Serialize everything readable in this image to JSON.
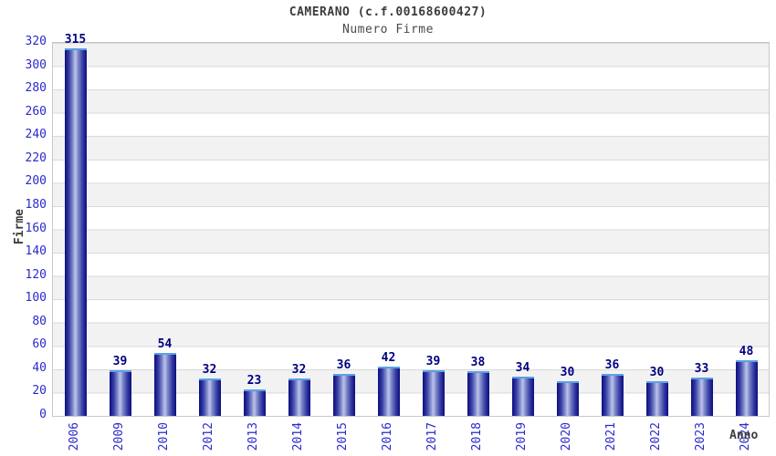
{
  "header": {
    "title": "CAMERANO (c.f.00168600427)",
    "subtitle": "Numero Firme"
  },
  "chart_data": {
    "type": "bar",
    "title": "CAMERANO (c.f.00168600427)",
    "subtitle": "Numero Firme",
    "xlabel": "Anno",
    "ylabel": "Firme",
    "categories": [
      "2006",
      "2009",
      "2010",
      "2012",
      "2013",
      "2014",
      "2015",
      "2016",
      "2017",
      "2018",
      "2019",
      "2020",
      "2021",
      "2022",
      "2023",
      "2024"
    ],
    "values": [
      315,
      39,
      54,
      32,
      23,
      32,
      36,
      42,
      39,
      38,
      34,
      30,
      36,
      30,
      33,
      48
    ],
    "ylim": [
      0,
      320
    ],
    "ytick_step": 20,
    "yticks": [
      0,
      20,
      40,
      60,
      80,
      100,
      120,
      140,
      160,
      180,
      200,
      220,
      240,
      260,
      280,
      300,
      320
    ],
    "legend": "none",
    "grid": "horizontal-bands-alternating",
    "colors": {
      "bar_edge": "#10107c",
      "bar_mid": "#7b85c8",
      "bar_highlight": "#bcc4ea",
      "bar_cap": "#5ba0e6",
      "value_label": "#000080",
      "axis_tick_label": "#2a2acc",
      "axis_title": "#3c3c3c",
      "band_gray": "#f2f2f2",
      "band_white": "#ffffff",
      "gridline": "#d9d9d9",
      "plot_border": "#c8c8c8",
      "background": "#ffffff"
    }
  }
}
